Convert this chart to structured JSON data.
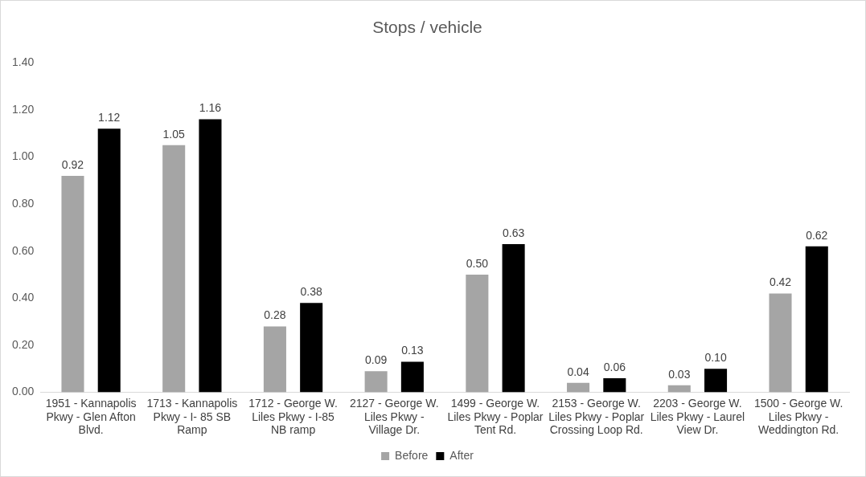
{
  "chart_data": {
    "type": "bar",
    "title": "Stops / vehicle",
    "categories": [
      "1951 - Kannapolis Pkwy - Glen Afton Blvd.",
      "1713 - Kannapolis Pkwy - I- 85 SB Ramp",
      "1712 - George W. Liles Pkwy - I-85 NB ramp",
      "2127 - George W. Liles Pkwy - Village Dr.",
      "1499 - George W. Liles Pkwy - Poplar Tent Rd.",
      "2153 - George W. Liles Pkwy - Poplar Crossing Loop Rd.",
      "2203 - George W. Liles Pkwy - Laurel View Dr.",
      "1500 - George W. Liles Pkwy - Weddington Rd."
    ],
    "series": [
      {
        "name": "Before",
        "color": "#a5a5a5",
        "values": [
          0.92,
          1.05,
          0.28,
          0.09,
          0.5,
          0.04,
          0.03,
          0.42
        ],
        "value_labels": [
          "0.92",
          "1.05",
          "0.28",
          "0.09",
          "0.50",
          "0.04",
          "0.03",
          "0.42"
        ]
      },
      {
        "name": "After",
        "color": "#000000",
        "values": [
          1.12,
          1.16,
          0.38,
          0.13,
          0.63,
          0.06,
          0.1,
          0.62
        ],
        "value_labels": [
          "1.12",
          "1.16",
          "0.38",
          "0.13",
          "0.63",
          "0.06",
          "0.10",
          "0.62"
        ]
      }
    ],
    "ylim": [
      0,
      1.4
    ],
    "yticks": [
      {
        "value": 0,
        "label": "0.00"
      },
      {
        "value": 0.2,
        "label": "0.20"
      },
      {
        "value": 0.4,
        "label": "0.40"
      },
      {
        "value": 0.6,
        "label": "0.60"
      },
      {
        "value": 0.8,
        "label": "0.80"
      },
      {
        "value": 1,
        "label": "1.00"
      },
      {
        "value": 1.2,
        "label": "1.20"
      },
      {
        "value": 1.4,
        "label": "1.40"
      }
    ],
    "legend": "bottom",
    "grid": false
  }
}
